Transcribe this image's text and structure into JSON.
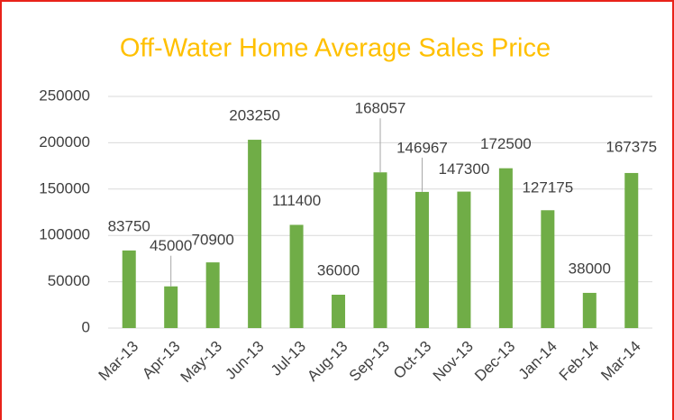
{
  "chart_data": {
    "type": "bar",
    "title": "Off-Water Home Average Sales Price",
    "categories": [
      "Mar-13",
      "Apr-13",
      "May-13",
      "Jun-13",
      "Jul-13",
      "Aug-13",
      "Sep-13",
      "Oct-13",
      "Nov-13",
      "Dec-13",
      "Jan-14",
      "Feb-14",
      "Mar-14"
    ],
    "values": [
      83750,
      45000,
      70900,
      203250,
      111400,
      36000,
      168057,
      146967,
      147300,
      172500,
      127175,
      38000,
      167375
    ],
    "color": "#70ad47",
    "ylim": [
      0,
      250000
    ],
    "yticks": [
      0,
      50000,
      100000,
      150000,
      200000,
      250000
    ],
    "grid": true
  }
}
